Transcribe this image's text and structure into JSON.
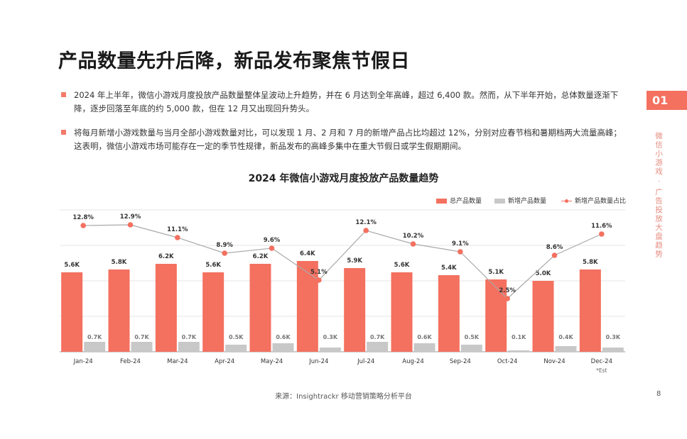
{
  "page": {
    "title": "产品数量先升后降，新品发布聚焦节假日",
    "bullets": [
      "2024 年上半年，微信小游戏月度投放产品数量整体呈波动上升趋势，并在 6 月达到全年高峰，超过 6,400 款。然而，从下半年开始，总体数量逐渐下降，逐步回落至年底的约 5,000 款，但在 12 月又出现回升势头。",
      "将每月新增小游戏数量与当月全部小游戏数量对比，可以发现 1 月、2 月和 7 月的新增产品占比均超过 12%，分别对应春节档和暑期档两大流量高峰；这表明，微信小游戏市场可能存在一定的季节性规律，新品发布的高峰多集中在重大节假日或学生假期期间。"
    ],
    "section_number": "01",
    "side_label": "微信小游戏 · 广告投放大盘趋势",
    "source": "来源：Insightrackr 移动营销策略分析平台",
    "page_number": "8"
  },
  "colors": {
    "total_bar": "#f4705f",
    "new_bar": "#c8c8c8",
    "ratio_line": "#a9a9a9",
    "ratio_dot": "#f4705f",
    "accent": "#f4705f"
  },
  "chart_data": {
    "type": "bar",
    "title": "2024 年微信小游戏月度投放产品数量趋势",
    "legend_position": "top-right",
    "grid": true,
    "categories": [
      "Jan-24",
      "Feb-24",
      "Mar-24",
      "Apr-24",
      "May-24",
      "Jun-24",
      "Jul-24",
      "Aug-24",
      "Sep-24",
      "Oct-24",
      "Nov-24",
      "Dec-24"
    ],
    "category_notes": [
      "",
      "",
      "",
      "",
      "",
      "",
      "",
      "",
      "",
      "",
      "",
      "*Est"
    ],
    "series": [
      {
        "name": "总产品数量",
        "type": "bar",
        "values": [
          5.6,
          5.8,
          6.2,
          5.6,
          6.2,
          6.4,
          5.9,
          5.6,
          5.4,
          5.1,
          5.0,
          5.8
        ],
        "labels": [
          "5.6K",
          "5.8K",
          "6.2K",
          "5.6K",
          "6.2K",
          "6.4K",
          "5.9K",
          "5.6K",
          "5.4K",
          "5.1K",
          "5.0K",
          "5.8K"
        ]
      },
      {
        "name": "新增产品数量",
        "type": "bar",
        "values": [
          0.7,
          0.7,
          0.7,
          0.5,
          0.6,
          0.3,
          0.7,
          0.6,
          0.5,
          0.1,
          0.4,
          0.3
        ],
        "labels": [
          "0.7K",
          "0.7K",
          "0.7K",
          "0.5K",
          "0.6K",
          "0.3K",
          "0.7K",
          "0.6K",
          "0.5K",
          "0.1K",
          "0.4K",
          "0.3K"
        ]
      },
      {
        "name": "新增产品数量占比",
        "type": "line",
        "values": [
          12.8,
          12.9,
          11.1,
          8.9,
          9.6,
          5.1,
          12.1,
          10.2,
          9.1,
          2.5,
          8.6,
          11.6
        ],
        "labels": [
          "12.8%",
          "12.9%",
          "11.1%",
          "8.9%",
          "9.6%",
          "5.1%",
          "12.1%",
          "10.2%",
          "9.1%",
          "2.5%",
          "8.6%",
          "11.6%"
        ]
      }
    ],
    "bar_axis_range": [
      0,
      10
    ],
    "ratio_axis_range": [
      -5,
      15
    ]
  }
}
